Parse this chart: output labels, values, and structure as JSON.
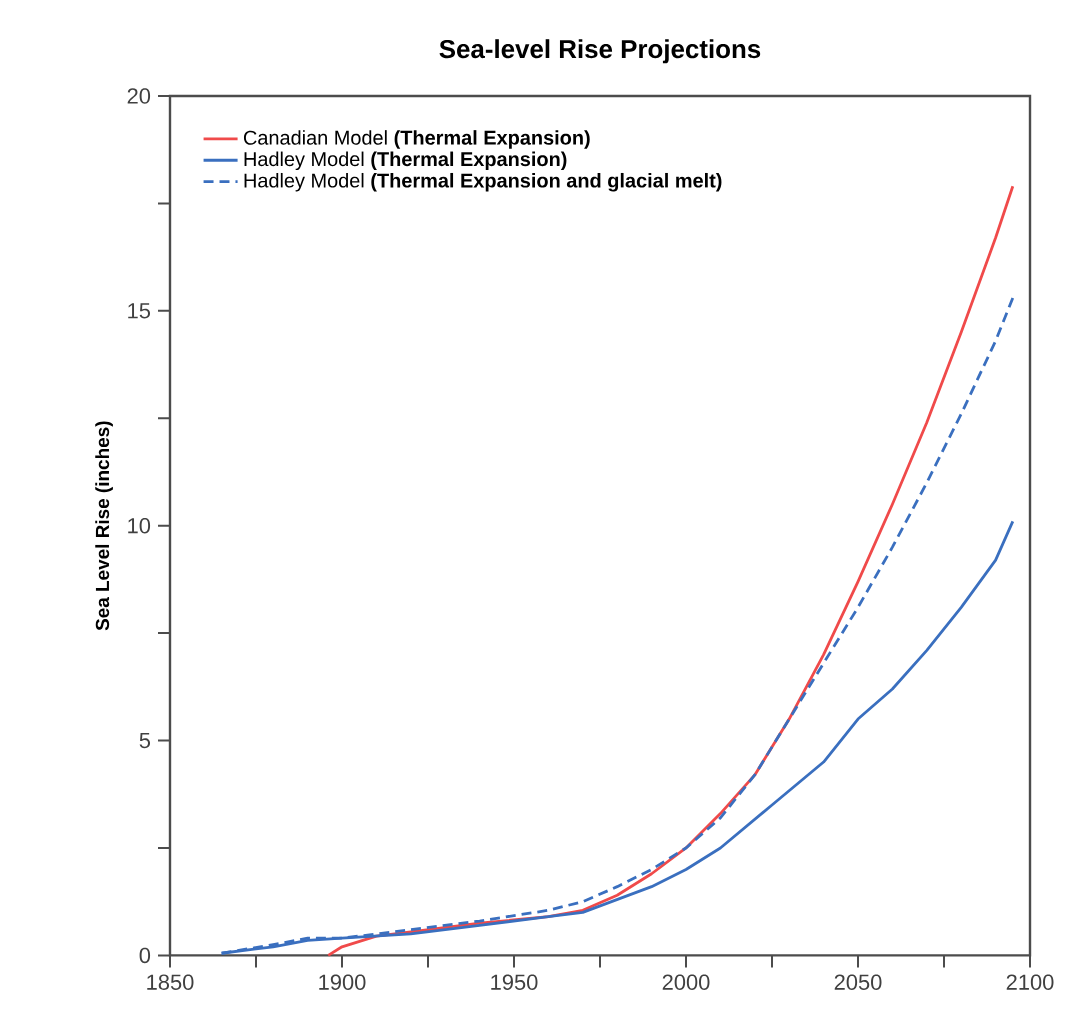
{
  "chart_data": {
    "type": "line",
    "title": "Sea-level Rise Projections",
    "ylabel": "Sea Level Rise (inches)",
    "xlim": [
      1850,
      2100
    ],
    "ylim": [
      0,
      20
    ],
    "xticks": [
      1850,
      {
        "value": 1875,
        "label": null
      },
      1900,
      {
        "value": 1925,
        "label": null
      },
      1950,
      {
        "value": 1975,
        "label": null
      },
      2000,
      {
        "value": 2025,
        "label": null
      },
      2050,
      {
        "value": 2075,
        "label": null
      },
      2100
    ],
    "yticks": [
      0,
      {
        "value": 2.5,
        "label": null
      },
      5,
      {
        "value": 7.5,
        "label": null
      },
      10,
      {
        "value": 12.5,
        "label": null
      },
      15,
      {
        "value": 17.5,
        "label": null
      },
      20
    ],
    "grid": false,
    "legend": "top left",
    "series": [
      {
        "name": "Canadian Model **(Thermal Expansion)**",
        "color": "#f04a4a",
        "line_style": "solid",
        "x": [
          1896,
          1900,
          1910,
          1920,
          1940,
          1960,
          1970,
          1980,
          1990,
          2000,
          2010,
          2020,
          2030,
          2040,
          2050,
          2060,
          2070,
          2080,
          2090,
          2095
        ],
        "values": [
          0,
          0.2,
          0.45,
          0.55,
          0.75,
          0.9,
          1.05,
          1.4,
          1.9,
          2.5,
          3.3,
          4.2,
          5.5,
          7.0,
          8.7,
          10.5,
          12.4,
          14.5,
          16.7,
          17.9
        ]
      },
      {
        "name": "Hadley Model **(Thermal Expansion)**",
        "color": "#3a6fbf",
        "line_style": "solid",
        "x": [
          1865,
          1880,
          1890,
          1900,
          1920,
          1940,
          1960,
          1970,
          1980,
          1990,
          2000,
          2010,
          2025,
          2040,
          2050,
          2060,
          2070,
          2080,
          2090,
          2095
        ],
        "values": [
          0.05,
          0.2,
          0.35,
          0.4,
          0.5,
          0.7,
          0.9,
          1.0,
          1.3,
          1.6,
          2.0,
          2.5,
          3.5,
          4.5,
          5.5,
          6.2,
          7.1,
          8.1,
          9.2,
          10.1
        ]
      },
      {
        "name": "Hadley Model **(Thermal Expansion and glacial melt)**",
        "color": "#3a6fbf",
        "line_style": "dashed",
        "x": [
          1865,
          1880,
          1890,
          1900,
          1920,
          1940,
          1960,
          1970,
          1980,
          1990,
          2000,
          2010,
          2020,
          2030,
          2040,
          2050,
          2060,
          2070,
          2080,
          2090,
          2095
        ],
        "values": [
          0.05,
          0.25,
          0.4,
          0.4,
          0.6,
          0.8,
          1.05,
          1.25,
          1.6,
          2.0,
          2.5,
          3.2,
          4.2,
          5.5,
          6.8,
          8.1,
          9.5,
          11.0,
          12.6,
          14.3,
          15.3
        ]
      }
    ]
  }
}
